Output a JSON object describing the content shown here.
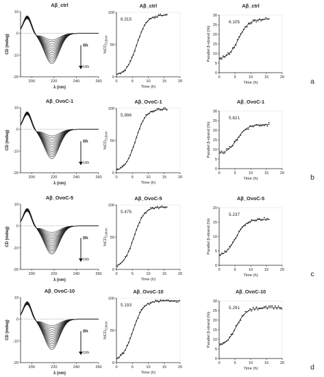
{
  "figure": {
    "rows": [
      {
        "letter": "a",
        "sample": "Aβ_ctrl",
        "cd": {
          "title": "Aβ_ctrl",
          "ylabel": "CD (mdeg)",
          "xlabel": "λ (nm)",
          "time_start": "0h",
          "time_end": "16h"
        },
        "kin1": {
          "title": "Aβ_ctrl",
          "ylabel": "%CD218nm",
          "xlabel": "Time (h)",
          "t_half": "6.315"
        },
        "kin2": {
          "title": "Aβ_ctrl",
          "ylabel": "Parallel β-strand (%)",
          "xlabel": "Time (h)",
          "t_half": "6.105"
        }
      },
      {
        "letter": "b",
        "sample": "Aβ_OvoC-1",
        "cd": {
          "title": "Aβ_OvoC-1",
          "ylabel": "CD (mdeg)",
          "xlabel": "λ (nm)",
          "time_start": "0h",
          "time_end": "16h"
        },
        "kin1": {
          "title": "Aβ_OvoC-1",
          "ylabel": "%CD218nm",
          "xlabel": "Time (h)",
          "t_half": "5.996"
        },
        "kin2": {
          "title": "Aβ_OvoC-1",
          "ylabel": "Parallel β-strand (%)",
          "xlabel": "Time (h)",
          "t_half": "5.621"
        }
      },
      {
        "letter": "c",
        "sample": "Aβ_OvoC-5",
        "cd": {
          "title": "Aβ_OvoC-5",
          "ylabel": "CD (mdeg)",
          "xlabel": "λ (nm)",
          "time_start": "0h",
          "time_end": "16h"
        },
        "kin1": {
          "title": "Aβ_OvoC-5",
          "ylabel": "%CD218nm",
          "xlabel": "Time (h)",
          "t_half": "5.475"
        },
        "kin2": {
          "title": "Aβ_OvoC-5",
          "ylabel": "Parallel β-strand (%)",
          "xlabel": "Time (h)",
          "t_half": "5.237"
        }
      },
      {
        "letter": "d",
        "sample": "Aβ_OvoC-10",
        "cd": {
          "title": "Aβ_OvoC-10",
          "ylabel": "CD (mdeg)",
          "xlabel": "λ (nm)",
          "time_start": "0h",
          "time_end": "16h"
        },
        "kin1": {
          "title": "Aβ_OvoC-10",
          "ylabel": "%CD218nm",
          "xlabel": "Time (h)",
          "t_half": "5.193"
        },
        "kin2": {
          "title": "Aβ_OvoC-10",
          "ylabel": "Parallel β-strand (%)",
          "xlabel": "Time (h)",
          "t_half": "5.291"
        }
      }
    ]
  },
  "chart_data": [
    {
      "type": "line",
      "panel": "CD spectra",
      "x_range": [
        190,
        260
      ],
      "xticks": [
        200,
        220,
        240,
        260
      ],
      "y_range": [
        -20,
        10
      ],
      "yticks": [
        -20,
        -10,
        0,
        10
      ],
      "reference_line": 0,
      "series_count": 14,
      "curve_shape": "positive maximum near 196 nm (~7 mdeg at 0h, ~8 mdeg at 16h); minimum near 218 nm deepening from about -3 (0h) to -14 (16h) mdeg",
      "min_depth_by_row": [
        -14,
        -13.5,
        -13,
        -14
      ]
    },
    {
      "type": "scatter",
      "panel": "%CD218nm kinetics",
      "x_range": [
        0,
        20
      ],
      "xticks": [
        0,
        5,
        10,
        15,
        20
      ],
      "y_range": [
        0,
        100
      ],
      "yticks": [
        0,
        50,
        100
      ],
      "fit": "sigmoidal",
      "rows": [
        {
          "x_max": 16,
          "t_half": 6.315,
          "plateau": 96,
          "base": 2
        },
        {
          "x_max": 16,
          "t_half": 5.996,
          "plateau": 99,
          "base": 2
        },
        {
          "x_max": 16,
          "t_half": 5.475,
          "plateau": 97,
          "base": 3
        },
        {
          "x_max": 20,
          "t_half": 5.193,
          "plateau": 96,
          "base": 3
        }
      ]
    },
    {
      "type": "scatter",
      "panel": "Parallel β-strand kinetics",
      "x_range": [
        0,
        20
      ],
      "xticks": [
        0,
        5,
        10,
        15,
        20
      ],
      "rows": [
        {
          "y_range": [
            0,
            30
          ],
          "yticks": [
            0,
            5,
            10,
            15,
            20,
            25,
            30
          ],
          "x_max": 16,
          "t_half": 6.105,
          "base": 7,
          "plateau": 28
        },
        {
          "y_range": [
            0,
            30
          ],
          "yticks": [
            0,
            5,
            10,
            15,
            20,
            25,
            30
          ],
          "x_max": 16,
          "t_half": 5.621,
          "base": 7.5,
          "plateau": 23
        },
        {
          "y_range": [
            0,
            20
          ],
          "yticks": [
            0,
            5,
            10,
            15,
            20
          ],
          "x_max": 16,
          "t_half": 5.237,
          "base": 3,
          "plateau": 16
        },
        {
          "y_range": [
            0,
            30
          ],
          "yticks": [
            0,
            5,
            10,
            15,
            20,
            25,
            30
          ],
          "x_max": 20,
          "t_half": 5.291,
          "base": 6,
          "plateau": 26.5
        }
      ]
    }
  ]
}
